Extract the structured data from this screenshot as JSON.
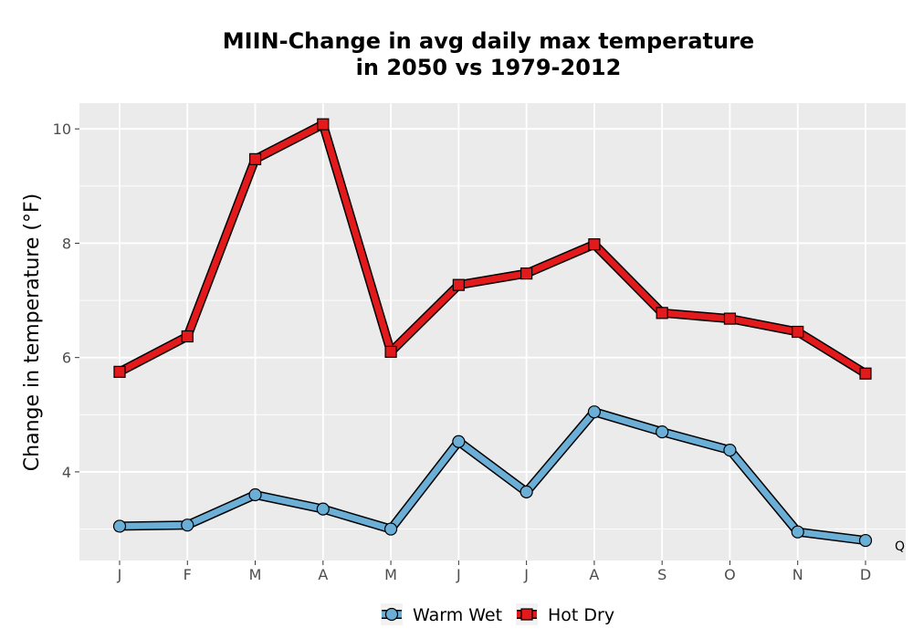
{
  "chart_data": {
    "type": "line",
    "title_line1": "MIIN-Change in avg daily max temperature",
    "title_line2": "in 2050 vs 1979-2012",
    "xlabel": "",
    "ylabel": "Change in temperature (°F)",
    "categories": [
      "J",
      "F",
      "M",
      "A",
      "M",
      "J",
      "J",
      "A",
      "S",
      "O",
      "N",
      "D"
    ],
    "yticks": [
      4,
      6,
      8,
      10
    ],
    "ylim": [
      2.45,
      10.45
    ],
    "grid": true,
    "legend_position": "bottom",
    "series": [
      {
        "name": "Warm Wet",
        "color": "#6baed6",
        "marker": "circle",
        "values": [
          3.05,
          3.07,
          3.6,
          3.35,
          3.0,
          4.53,
          3.65,
          5.05,
          4.7,
          4.38,
          2.95,
          2.8
        ]
      },
      {
        "name": "Hot Dry",
        "color": "#e31a1c",
        "marker": "square",
        "values": [
          5.75,
          6.37,
          9.47,
          10.08,
          6.1,
          7.27,
          7.47,
          7.98,
          6.78,
          6.68,
          6.45,
          5.72
        ]
      }
    ],
    "corner_note": "Q"
  }
}
